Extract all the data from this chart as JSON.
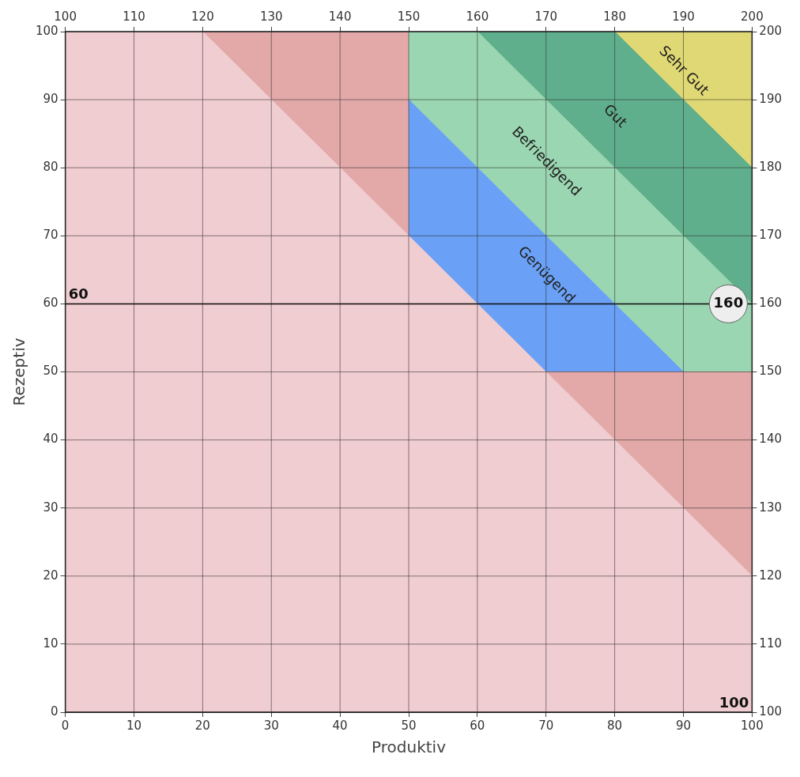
{
  "chart_data": {
    "type": "area",
    "xlabel": "Produktiv",
    "ylabel": "Rezeptiv",
    "xlim": [
      0,
      100
    ],
    "xticks": [
      0,
      10,
      20,
      30,
      40,
      50,
      60,
      70,
      80,
      90,
      100
    ],
    "ylim": [
      0,
      100
    ],
    "yticks": [
      0,
      10,
      20,
      30,
      40,
      50,
      60,
      70,
      80,
      90,
      100
    ],
    "x2lim": [
      100,
      200
    ],
    "x2ticks": [
      100,
      110,
      120,
      130,
      140,
      150,
      160,
      170,
      180,
      190,
      200
    ],
    "y2lim": [
      100,
      200
    ],
    "y2ticks": [
      100,
      110,
      120,
      130,
      140,
      150,
      160,
      170,
      180,
      190,
      200
    ],
    "grid": true,
    "legend": false,
    "series": [
      {
        "name": "Sehr Gut",
        "color": "#e0d874",
        "x": [
          80,
          100
        ],
        "values": [
          100,
          100
        ]
      },
      {
        "name": "Gut",
        "color": "#60af8c",
        "x": [
          60,
          80,
          100
        ],
        "values": [
          100,
          100,
          80
        ]
      },
      {
        "name": "Befriedigend",
        "color": "#9ad6b1",
        "x": [
          50,
          60,
          100
        ],
        "values": [
          100,
          100,
          60
        ]
      },
      {
        "color": "#e3a9a9",
        "x": [
          20,
          50
        ],
        "values": [
          100,
          100
        ]
      },
      {
        "name": "Genügend",
        "color": "#6aa1f6",
        "x": [
          50,
          90
        ],
        "values": [
          90,
          50
        ]
      },
      {
        "color": "#e3a9a9",
        "x": [
          70,
          100
        ],
        "values": [
          50,
          50
        ]
      },
      {
        "color": "#f0cdd0",
        "x": [
          0,
          20,
          100
        ],
        "values": [
          100,
          100,
          20
        ]
      }
    ],
    "ref_lines": [
      {
        "axis": "y",
        "value": 60,
        "label": "60"
      }
    ],
    "annotations": [
      {
        "text": "160",
        "x": 100,
        "y": 60
      },
      {
        "text": "100",
        "x": 100,
        "y": 0
      }
    ]
  }
}
